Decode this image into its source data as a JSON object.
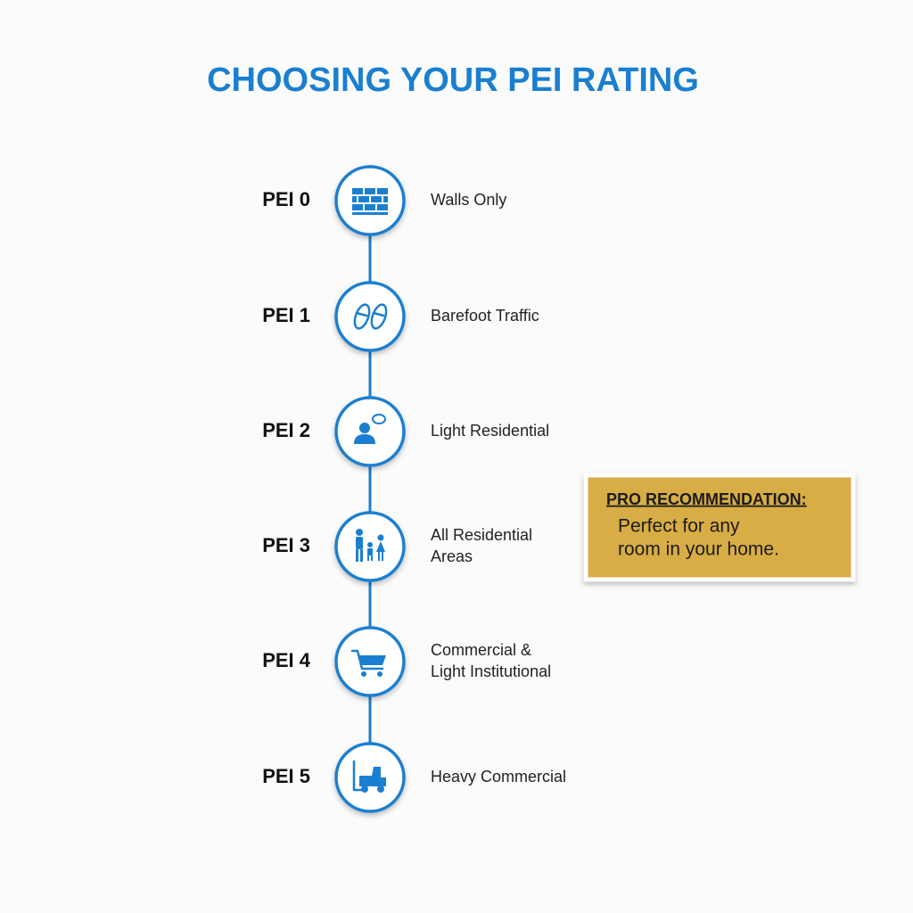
{
  "title": "CHOOSING YOUR PEI RATING",
  "steps": [
    {
      "label": "PEI 0",
      "description": [
        "Walls Only"
      ]
    },
    {
      "label": "PEI 1",
      "description": [
        "Barefoot Traffic"
      ]
    },
    {
      "label": "PEI 2",
      "description": [
        "Light Residential"
      ]
    },
    {
      "label": "PEI 3",
      "description": [
        "All Residential",
        "Areas"
      ]
    },
    {
      "label": "PEI 4",
      "description": [
        "Commercial &",
        "Light Institutional"
      ]
    },
    {
      "label": "PEI 5",
      "description": [
        "Heavy Commercial"
      ]
    }
  ],
  "callout": {
    "heading": "PRO RECOMMENDATION:",
    "text": [
      "Perfect for any",
      "room in your home."
    ]
  }
}
